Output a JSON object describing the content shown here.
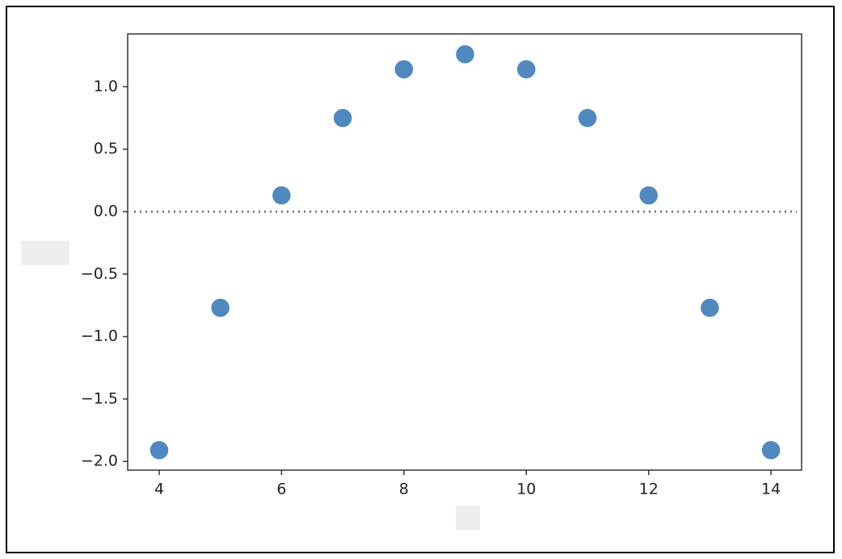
{
  "chart_data": {
    "type": "scatter",
    "x": [
      4,
      5,
      6,
      7,
      8,
      9,
      10,
      11,
      12,
      13,
      14
    ],
    "values": [
      -1.91,
      -0.77,
      0.13,
      0.75,
      1.14,
      1.26,
      1.14,
      0.75,
      0.13,
      -0.77,
      -1.91
    ],
    "color": "#5088c0",
    "xlim": [
      3.485,
      14.5
    ],
    "xticks": [
      4,
      6,
      8,
      10,
      12,
      14
    ],
    "ylim": [
      -2.07,
      1.423
    ],
    "yticks": [
      {
        "value": -2.0,
        "label": "−2.0"
      },
      {
        "value": -1.5,
        "label": "−1.5"
      },
      {
        "value": -1.0,
        "label": "−1.0"
      },
      {
        "value": -0.5,
        "label": "−0.5"
      },
      {
        "value": 0.0,
        "label": "0.0"
      },
      {
        "value": 0.5,
        "label": "0.5"
      },
      {
        "value": 1.0,
        "label": "1.0"
      }
    ],
    "hline": 0,
    "grid": false
  }
}
